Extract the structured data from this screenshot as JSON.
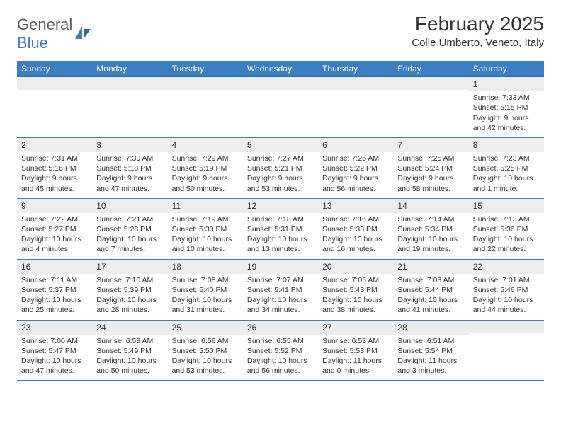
{
  "logo": {
    "text1": "General",
    "text2": "Blue"
  },
  "title": "February 2025",
  "location": "Colle Umberto, Veneto, Italy",
  "colors": {
    "header_bg": "#3a7fc4",
    "header_text": "#ffffff",
    "band_bg": "#ededed",
    "row_border": "#3a7fc4",
    "body_text": "#333333",
    "logo_gray": "#5a5a5a",
    "logo_blue": "#3a7fc4",
    "page_bg": "#ffffff"
  },
  "typography": {
    "title_fontsize": 28,
    "location_fontsize": 15,
    "logo_fontsize": 22,
    "header_fontsize": 12,
    "daynum_fontsize": 12,
    "body_fontsize": 10.5
  },
  "weekdays": [
    "Sunday",
    "Monday",
    "Tuesday",
    "Wednesday",
    "Thursday",
    "Friday",
    "Saturday"
  ],
  "weeks": [
    [
      {
        "num": "",
        "lines": []
      },
      {
        "num": "",
        "lines": []
      },
      {
        "num": "",
        "lines": []
      },
      {
        "num": "",
        "lines": []
      },
      {
        "num": "",
        "lines": []
      },
      {
        "num": "",
        "lines": []
      },
      {
        "num": "1",
        "lines": [
          "Sunrise: 7:33 AM",
          "Sunset: 5:15 PM",
          "Daylight: 9 hours and 42 minutes."
        ]
      }
    ],
    [
      {
        "num": "2",
        "lines": [
          "Sunrise: 7:31 AM",
          "Sunset: 5:16 PM",
          "Daylight: 9 hours and 45 minutes."
        ]
      },
      {
        "num": "3",
        "lines": [
          "Sunrise: 7:30 AM",
          "Sunset: 5:18 PM",
          "Daylight: 9 hours and 47 minutes."
        ]
      },
      {
        "num": "4",
        "lines": [
          "Sunrise: 7:29 AM",
          "Sunset: 5:19 PM",
          "Daylight: 9 hours and 50 minutes."
        ]
      },
      {
        "num": "5",
        "lines": [
          "Sunrise: 7:27 AM",
          "Sunset: 5:21 PM",
          "Daylight: 9 hours and 53 minutes."
        ]
      },
      {
        "num": "6",
        "lines": [
          "Sunrise: 7:26 AM",
          "Sunset: 5:22 PM",
          "Daylight: 9 hours and 56 minutes."
        ]
      },
      {
        "num": "7",
        "lines": [
          "Sunrise: 7:25 AM",
          "Sunset: 5:24 PM",
          "Daylight: 9 hours and 58 minutes."
        ]
      },
      {
        "num": "8",
        "lines": [
          "Sunrise: 7:23 AM",
          "Sunset: 5:25 PM",
          "Daylight: 10 hours and 1 minute."
        ]
      }
    ],
    [
      {
        "num": "9",
        "lines": [
          "Sunrise: 7:22 AM",
          "Sunset: 5:27 PM",
          "Daylight: 10 hours and 4 minutes."
        ]
      },
      {
        "num": "10",
        "lines": [
          "Sunrise: 7:21 AM",
          "Sunset: 5:28 PM",
          "Daylight: 10 hours and 7 minutes."
        ]
      },
      {
        "num": "11",
        "lines": [
          "Sunrise: 7:19 AM",
          "Sunset: 5:30 PM",
          "Daylight: 10 hours and 10 minutes."
        ]
      },
      {
        "num": "12",
        "lines": [
          "Sunrise: 7:18 AM",
          "Sunset: 5:31 PM",
          "Daylight: 10 hours and 13 minutes."
        ]
      },
      {
        "num": "13",
        "lines": [
          "Sunrise: 7:16 AM",
          "Sunset: 5:33 PM",
          "Daylight: 10 hours and 16 minutes."
        ]
      },
      {
        "num": "14",
        "lines": [
          "Sunrise: 7:14 AM",
          "Sunset: 5:34 PM",
          "Daylight: 10 hours and 19 minutes."
        ]
      },
      {
        "num": "15",
        "lines": [
          "Sunrise: 7:13 AM",
          "Sunset: 5:36 PM",
          "Daylight: 10 hours and 22 minutes."
        ]
      }
    ],
    [
      {
        "num": "16",
        "lines": [
          "Sunrise: 7:11 AM",
          "Sunset: 5:37 PM",
          "Daylight: 10 hours and 25 minutes."
        ]
      },
      {
        "num": "17",
        "lines": [
          "Sunrise: 7:10 AM",
          "Sunset: 5:39 PM",
          "Daylight: 10 hours and 28 minutes."
        ]
      },
      {
        "num": "18",
        "lines": [
          "Sunrise: 7:08 AM",
          "Sunset: 5:40 PM",
          "Daylight: 10 hours and 31 minutes."
        ]
      },
      {
        "num": "19",
        "lines": [
          "Sunrise: 7:07 AM",
          "Sunset: 5:41 PM",
          "Daylight: 10 hours and 34 minutes."
        ]
      },
      {
        "num": "20",
        "lines": [
          "Sunrise: 7:05 AM",
          "Sunset: 5:43 PM",
          "Daylight: 10 hours and 38 minutes."
        ]
      },
      {
        "num": "21",
        "lines": [
          "Sunrise: 7:03 AM",
          "Sunset: 5:44 PM",
          "Daylight: 10 hours and 41 minutes."
        ]
      },
      {
        "num": "22",
        "lines": [
          "Sunrise: 7:01 AM",
          "Sunset: 5:46 PM",
          "Daylight: 10 hours and 44 minutes."
        ]
      }
    ],
    [
      {
        "num": "23",
        "lines": [
          "Sunrise: 7:00 AM",
          "Sunset: 5:47 PM",
          "Daylight: 10 hours and 47 minutes."
        ]
      },
      {
        "num": "24",
        "lines": [
          "Sunrise: 6:58 AM",
          "Sunset: 5:49 PM",
          "Daylight: 10 hours and 50 minutes."
        ]
      },
      {
        "num": "25",
        "lines": [
          "Sunrise: 6:56 AM",
          "Sunset: 5:50 PM",
          "Daylight: 10 hours and 53 minutes."
        ]
      },
      {
        "num": "26",
        "lines": [
          "Sunrise: 6:55 AM",
          "Sunset: 5:52 PM",
          "Daylight: 10 hours and 56 minutes."
        ]
      },
      {
        "num": "27",
        "lines": [
          "Sunrise: 6:53 AM",
          "Sunset: 5:53 PM",
          "Daylight: 11 hours and 0 minutes."
        ]
      },
      {
        "num": "28",
        "lines": [
          "Sunrise: 6:51 AM",
          "Sunset: 5:54 PM",
          "Daylight: 11 hours and 3 minutes."
        ]
      },
      {
        "num": "",
        "lines": []
      }
    ]
  ]
}
